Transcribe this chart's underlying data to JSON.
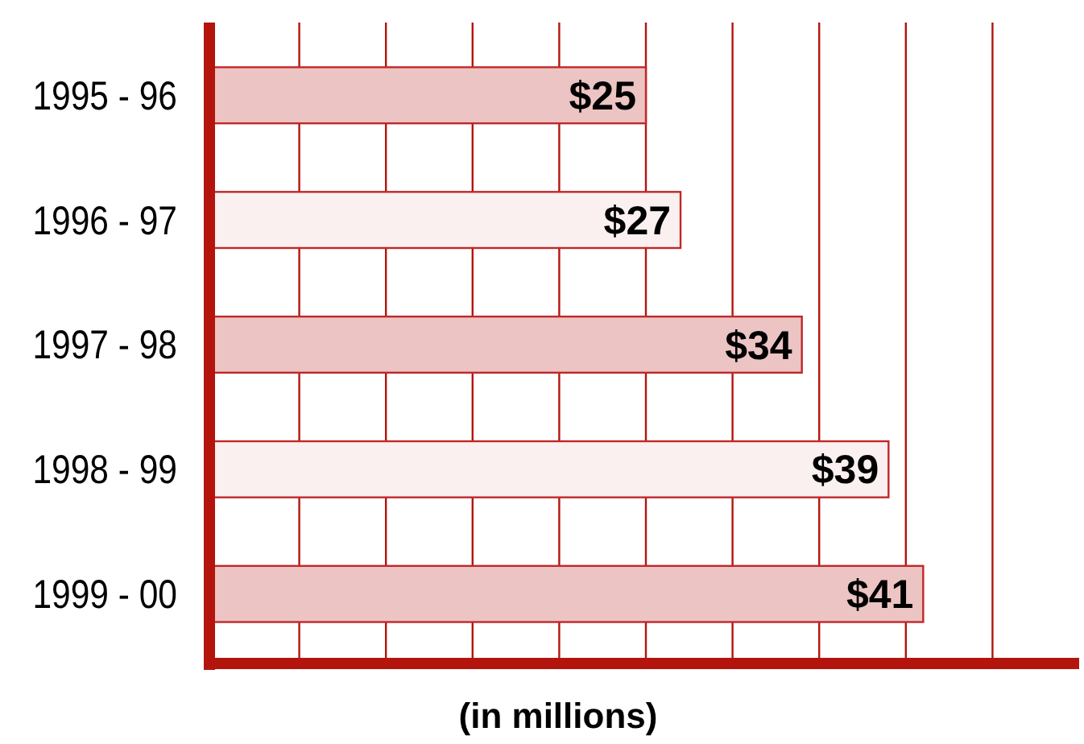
{
  "chart_data": {
    "type": "bar",
    "orientation": "horizontal",
    "categories": [
      "1995 - 96",
      "1996 - 97",
      "1997 - 98",
      "1998 - 99",
      "1999 - 00"
    ],
    "values": [
      25,
      27,
      34,
      39,
      41
    ],
    "colors": [
      "#ecc4c3",
      "#fbf0f0",
      "#ecc4c3",
      "#fbf0f0",
      "#ecc4c3"
    ],
    "value_labels": [
      "$25",
      "$27",
      "$34",
      "$39",
      "$41"
    ],
    "xlabel": "(in millions)",
    "xlim": [
      0,
      50
    ],
    "xticks": [
      {
        "value": 5,
        "label": null
      },
      {
        "value": 10,
        "label": null
      },
      {
        "value": 15,
        "label": null
      },
      {
        "value": 20,
        "label": null
      },
      {
        "value": 25,
        "label": null
      },
      {
        "value": 30,
        "label": null
      },
      {
        "value": 35,
        "label": null
      },
      {
        "value": 40,
        "label": null
      },
      {
        "value": 45,
        "label": null
      }
    ],
    "grid": "x",
    "tick_labels": "y"
  }
}
